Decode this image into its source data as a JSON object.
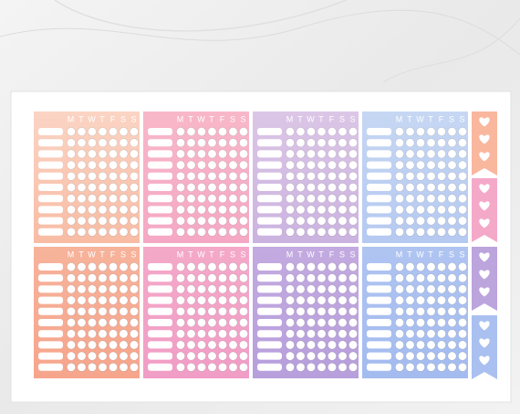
{
  "days": [
    "M",
    "T",
    "W",
    "T",
    "F",
    "S",
    "S"
  ]
}
